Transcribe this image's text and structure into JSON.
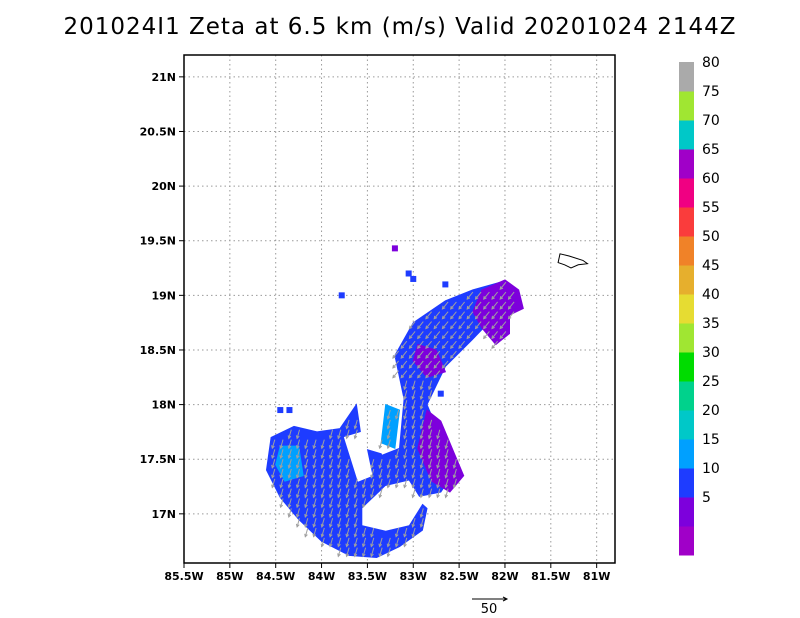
{
  "title": "201024I1  Zeta at 6.5 km (m/s) Valid 20201024  2144Z",
  "map": {
    "lon_range": [
      -85.5,
      -80.8
    ],
    "lat_range": [
      16.55,
      21.2
    ],
    "x_ticks": [
      {
        "value": -85.5,
        "label": "85.5W"
      },
      {
        "value": -85.0,
        "label": "85W"
      },
      {
        "value": -84.5,
        "label": "84.5W"
      },
      {
        "value": -84.0,
        "label": "84W"
      },
      {
        "value": -83.5,
        "label": "83.5W"
      },
      {
        "value": -83.0,
        "label": "83W"
      },
      {
        "value": -82.5,
        "label": "82.5W"
      },
      {
        "value": -82.0,
        "label": "82W"
      },
      {
        "value": -81.5,
        "label": "81.5W"
      },
      {
        "value": -81.0,
        "label": "81W"
      }
    ],
    "y_ticks": [
      {
        "value": 17.0,
        "label": "17N"
      },
      {
        "value": 17.5,
        "label": "17.5N"
      },
      {
        "value": 18.0,
        "label": "18N"
      },
      {
        "value": 18.5,
        "label": "18.5N"
      },
      {
        "value": 19.0,
        "label": "19N"
      },
      {
        "value": 19.5,
        "label": "19.5N"
      },
      {
        "value": 20.0,
        "label": "20N"
      },
      {
        "value": 20.5,
        "label": "20.5N"
      },
      {
        "value": 21.0,
        "label": "21N"
      }
    ],
    "grid": "dotted",
    "wind_vector_color": "#a0a0a0",
    "reference_vector": {
      "label": "50"
    }
  },
  "colorbar": {
    "bins": [
      {
        "color": "#a000c8",
        "label": ""
      },
      {
        "color": "#7d00dc",
        "label": "5"
      },
      {
        "color": "#1e3cff",
        "label": "10"
      },
      {
        "color": "#00a0ff",
        "label": "15"
      },
      {
        "color": "#00c8c8",
        "label": "20"
      },
      {
        "color": "#00d28c",
        "label": "25"
      },
      {
        "color": "#00dc00",
        "label": "30"
      },
      {
        "color": "#a0e632",
        "label": "35"
      },
      {
        "color": "#e6dc32",
        "label": "40"
      },
      {
        "color": "#e6af2d",
        "label": "45"
      },
      {
        "color": "#f08228",
        "label": "50"
      },
      {
        "color": "#fa3c3c",
        "label": "55"
      },
      {
        "color": "#f00082",
        "label": "60"
      },
      {
        "color": "#a000c8",
        "label": "65"
      },
      {
        "color": "#00c8c8",
        "label": "70"
      },
      {
        "color": "#a0e632",
        "label": "75"
      },
      {
        "color": "#aaaaaa",
        "label": "80"
      }
    ]
  },
  "data_regions": [
    {
      "name": "sw-lobe",
      "level": "10",
      "color": "#1e3cff",
      "polygon": [
        [
          -84.55,
          17.7
        ],
        [
          -84.3,
          17.8
        ],
        [
          -84.05,
          17.75
        ],
        [
          -83.8,
          17.78
        ],
        [
          -83.62,
          18.0
        ],
        [
          -83.55,
          17.6
        ],
        [
          -83.35,
          17.55
        ],
        [
          -83.25,
          17.3
        ],
        [
          -83.05,
          17.2
        ],
        [
          -82.85,
          17.05
        ],
        [
          -82.9,
          16.85
        ],
        [
          -83.15,
          16.7
        ],
        [
          -83.4,
          16.6
        ],
        [
          -83.7,
          16.62
        ],
        [
          -84.0,
          16.75
        ],
        [
          -84.25,
          16.95
        ],
        [
          -84.45,
          17.15
        ],
        [
          -84.6,
          17.4
        ]
      ]
    },
    {
      "name": "central-band",
      "level": "10",
      "color": "#1e3cff",
      "polygon": [
        [
          -83.45,
          17.5
        ],
        [
          -83.15,
          17.6
        ],
        [
          -83.1,
          18.05
        ],
        [
          -83.2,
          18.45
        ],
        [
          -83.0,
          18.75
        ],
        [
          -82.65,
          18.95
        ],
        [
          -82.35,
          19.05
        ],
        [
          -82.05,
          19.12
        ],
        [
          -81.9,
          19.0
        ],
        [
          -82.1,
          18.82
        ],
        [
          -82.35,
          18.6
        ],
        [
          -82.65,
          18.35
        ],
        [
          -82.85,
          18.0
        ],
        [
          -82.7,
          17.7
        ],
        [
          -82.5,
          17.45
        ],
        [
          -82.7,
          17.2
        ],
        [
          -83.0,
          17.15
        ],
        [
          -83.3,
          17.3
        ]
      ]
    },
    {
      "name": "ne-curl",
      "level": "5",
      "color": "#7d00dc",
      "polygon": [
        [
          -82.25,
          19.05
        ],
        [
          -82.0,
          19.14
        ],
        [
          -81.85,
          19.05
        ],
        [
          -81.8,
          18.88
        ],
        [
          -81.95,
          18.82
        ],
        [
          -81.95,
          18.65
        ],
        [
          -82.1,
          18.55
        ],
        [
          -82.25,
          18.7
        ],
        [
          -82.35,
          18.85
        ]
      ]
    },
    {
      "name": "mid-purple",
      "level": "5",
      "color": "#7d00dc",
      "polygon": [
        [
          -82.85,
          17.95
        ],
        [
          -82.7,
          17.85
        ],
        [
          -82.55,
          17.55
        ],
        [
          -82.45,
          17.35
        ],
        [
          -82.6,
          17.2
        ],
        [
          -82.8,
          17.3
        ],
        [
          -82.95,
          17.6
        ]
      ]
    },
    {
      "name": "purple-streak",
      "level": "5",
      "color": "#7d00dc",
      "polygon": [
        [
          -82.95,
          18.55
        ],
        [
          -82.75,
          18.5
        ],
        [
          -82.65,
          18.3
        ],
        [
          -82.85,
          18.25
        ],
        [
          -83.0,
          18.4
        ]
      ]
    },
    {
      "name": "sw-cyan",
      "level": "15",
      "color": "#00a0ff",
      "polygon": [
        [
          -84.45,
          17.62
        ],
        [
          -84.25,
          17.62
        ],
        [
          -84.2,
          17.35
        ],
        [
          -84.4,
          17.3
        ],
        [
          -84.5,
          17.45
        ]
      ]
    },
    {
      "name": "mid-cyan",
      "level": "15",
      "color": "#00a0ff",
      "polygon": [
        [
          -83.3,
          18.0
        ],
        [
          -83.15,
          17.95
        ],
        [
          -83.2,
          17.6
        ],
        [
          -83.35,
          17.65
        ]
      ]
    }
  ],
  "holes": [
    {
      "name": "eye-clear",
      "polygon": [
        [
          -83.55,
          17.05
        ],
        [
          -83.3,
          17.25
        ],
        [
          -83.05,
          17.3
        ],
        [
          -82.9,
          17.1
        ],
        [
          -83.05,
          16.9
        ],
        [
          -83.3,
          16.85
        ],
        [
          -83.55,
          16.9
        ]
      ]
    },
    {
      "name": "gap-clear",
      "polygon": [
        [
          -83.75,
          17.7
        ],
        [
          -83.55,
          17.75
        ],
        [
          -83.45,
          17.35
        ],
        [
          -83.6,
          17.3
        ]
      ]
    }
  ],
  "island": {
    "name": "grand-cayman",
    "polygon": [
      [
        -81.4,
        19.38
      ],
      [
        -81.3,
        19.36
      ],
      [
        -81.15,
        19.32
      ],
      [
        -81.1,
        19.29
      ],
      [
        -81.2,
        19.28
      ],
      [
        -81.28,
        19.25
      ],
      [
        -81.35,
        19.28
      ],
      [
        -81.42,
        19.3
      ]
    ]
  }
}
